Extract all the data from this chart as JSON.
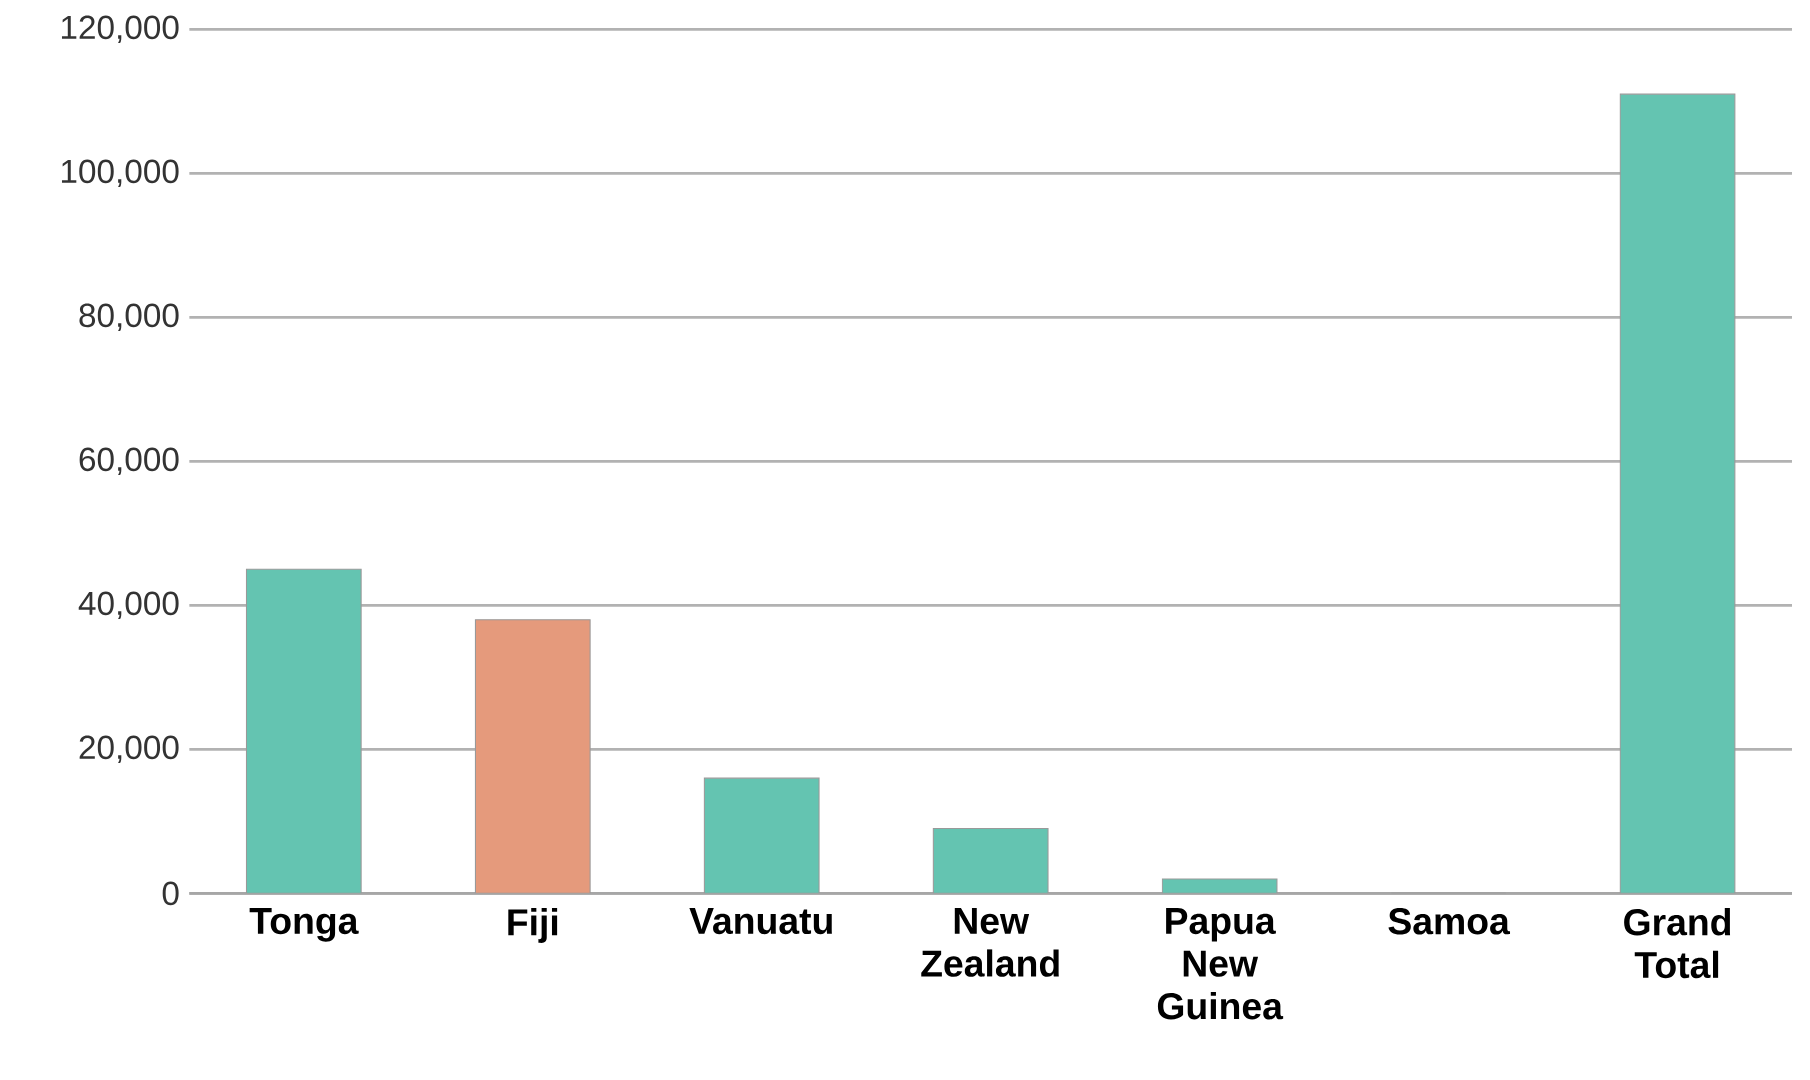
{
  "chart_data": {
    "type": "bar",
    "categories": [
      "Tonga",
      "Fiji",
      "Vanuatu",
      "New Zealand",
      "Papua New Guinea",
      "Samoa",
      "Grand Total"
    ],
    "values": [
      45000,
      38000,
      16000,
      9000,
      2000,
      0,
      111000
    ],
    "colors": [
      "#64c4b1",
      "#e59a7c",
      "#64c4b1",
      "#64c4b1",
      "#64c4b1",
      "#64c4b1",
      "#64c4b1"
    ],
    "ylim": [
      0,
      120000
    ],
    "yticks": [
      {
        "value": 0,
        "label": "0"
      },
      {
        "value": 20000,
        "label": "20,000"
      },
      {
        "value": 40000,
        "label": "40,000"
      },
      {
        "value": 60000,
        "label": "60,000"
      },
      {
        "value": 80000,
        "label": "80,000"
      },
      {
        "value": 100000,
        "label": "100,000"
      },
      {
        "value": 120000,
        "label": "120,000"
      }
    ],
    "grid": "y"
  }
}
